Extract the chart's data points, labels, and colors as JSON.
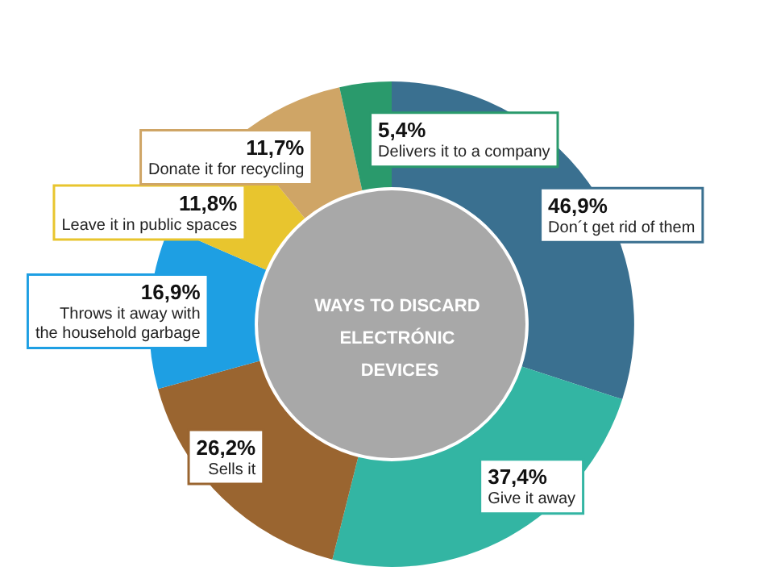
{
  "chart_data": {
    "type": "donut",
    "title": "WAYS TO DISCARD ELECTRÓNIC DEVICES",
    "categories": [
      "Don´t get rid of them",
      "Give it away",
      "Sells it",
      "Throws it away with the household garbage",
      "Leave it in public spaces",
      "Donate it for recycling",
      "Delivers it to a company"
    ],
    "values": [
      46.9,
      37.4,
      26.2,
      16.9,
      11.8,
      11.7,
      5.4
    ],
    "value_labels": [
      "46,9%",
      "37,4%",
      "26,2%",
      "16,9%",
      "11,8%",
      "11,7%",
      "5,4%"
    ],
    "colors": [
      "#3a7090",
      "#33b5a3",
      "#9a6530",
      "#1e9fe3",
      "#e8c52e",
      "#cfa566",
      "#2a9a6c"
    ],
    "legend": false
  }
}
